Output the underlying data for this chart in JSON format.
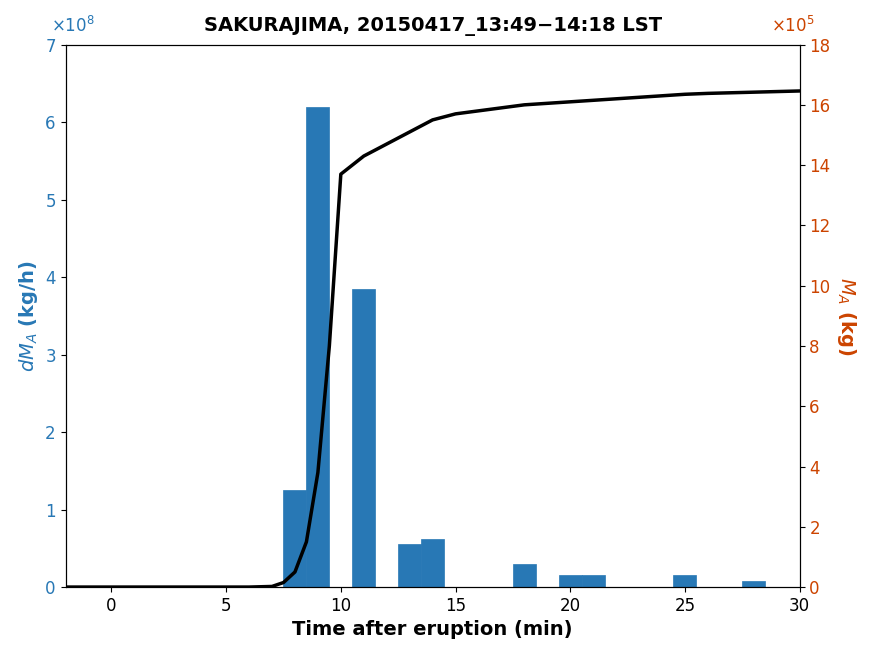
{
  "title": "SAKURAJIMA, 20150417_13:49−14:18 LST",
  "xlabel": "Time after eruption (min)",
  "bar_centers": [
    8,
    9,
    11,
    13,
    14,
    18,
    20,
    21,
    25,
    28
  ],
  "bar_heights": [
    125000000.0,
    620000000.0,
    385000000.0,
    55000000.0,
    62000000.0,
    30000000.0,
    15000000.0,
    15000000.0,
    15000000.0,
    8000000.0
  ],
  "bar_width": 1.0,
  "bar_color": "#2878b5",
  "line_x": [
    -2,
    0,
    5,
    6,
    7,
    7.5,
    8,
    8.5,
    9,
    9.5,
    10,
    10.5,
    11,
    12,
    13,
    14,
    15,
    16,
    17,
    18,
    19,
    20,
    21,
    22,
    23,
    24,
    25,
    26,
    27,
    28,
    29,
    30
  ],
  "line_y": [
    0,
    0,
    0,
    0.0,
    2000.0,
    15000.0,
    50000.0,
    150000.0,
    380000.0,
    800000.0,
    1370000.0,
    1400000.0,
    1430000.0,
    1470000.0,
    1510000.0,
    1550000.0,
    1570000.0,
    1580000.0,
    1590000.0,
    1600000.0,
    1605000.0,
    1610000.0,
    1615000.0,
    1620000.0,
    1625000.0,
    1630000.0,
    1635000.0,
    1638000.0,
    1640000.0,
    1642000.0,
    1644000.0,
    1646000.0
  ],
  "xlim": [
    -2,
    30
  ],
  "ylim_left": [
    0,
    700000000.0
  ],
  "ylim_right": [
    0,
    1800000.0
  ],
  "xticks": [
    0,
    5,
    10,
    15,
    20,
    25,
    30
  ],
  "yticks_left": [
    0,
    100000000.0,
    200000000.0,
    300000000.0,
    400000000.0,
    500000000.0,
    600000000.0,
    700000000.0
  ],
  "yticks_right": [
    0,
    200000.0,
    400000.0,
    600000.0,
    800000.0,
    1000000.0,
    1200000.0,
    1400000.0,
    1600000.0,
    1800000.0
  ],
  "left_color": "#2878b5",
  "right_color": "#cc4400",
  "line_color": "#000000",
  "line_width": 2.5,
  "background_color": "#ffffff",
  "title_fontsize": 14,
  "label_fontsize": 14,
  "tick_fontsize": 12
}
